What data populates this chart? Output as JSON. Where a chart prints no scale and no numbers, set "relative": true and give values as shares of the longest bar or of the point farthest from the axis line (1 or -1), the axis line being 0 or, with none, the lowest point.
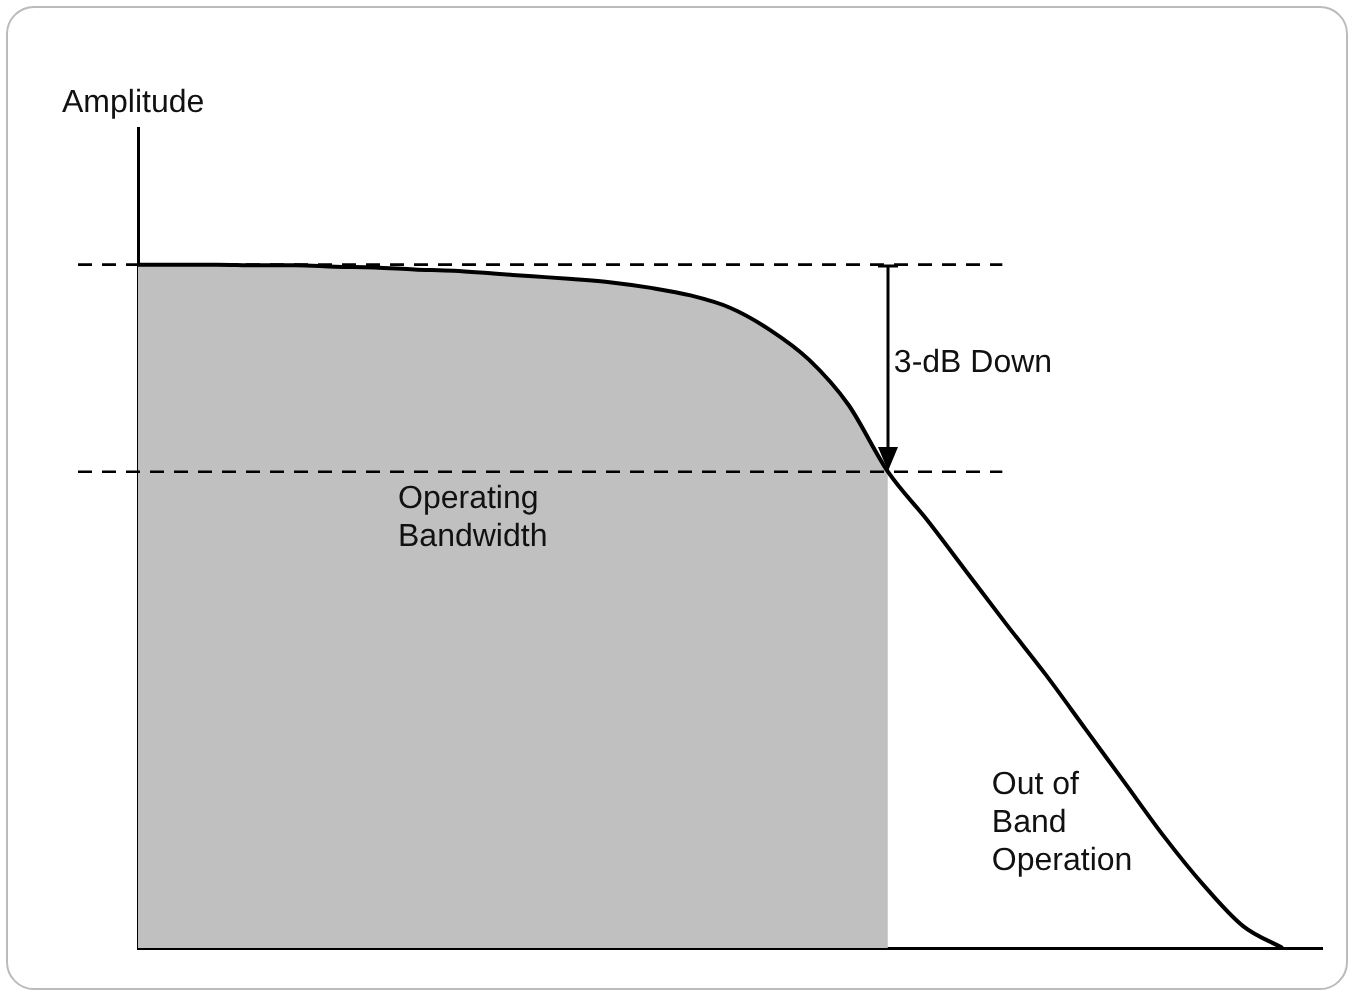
{
  "chart_data": {
    "type": "line",
    "ylabel": "Amplitude",
    "relative": true,
    "legend": false,
    "grid": false,
    "tick_labels": false,
    "marker": "none",
    "line_style": "solid",
    "categories": [
      null,
      null,
      null,
      null,
      null,
      null,
      null,
      null,
      null,
      null,
      null,
      null,
      null,
      null,
      null,
      null,
      null,
      null,
      null,
      null,
      null,
      null,
      null,
      null,
      null,
      null,
      null,
      null,
      null,
      null,
      null
    ],
    "series": [
      {
        "type": "area",
        "color": "#c0c0c0",
        "values": [
          1.0,
          1.0,
          1.0,
          0.999,
          0.999,
          0.997,
          0.996,
          0.993,
          0.991,
          0.987,
          0.983,
          0.979,
          0.974,
          0.966,
          0.955,
          0.937,
          0.905,
          0.861,
          0.795,
          0.697,
          null,
          null,
          null,
          null,
          null,
          null,
          null,
          null,
          null,
          null,
          null
        ]
      },
      {
        "color": "#000000",
        "values": [
          1.0,
          1.0,
          1.0,
          0.999,
          0.999,
          0.997,
          0.996,
          0.993,
          0.991,
          0.987,
          0.983,
          0.979,
          0.974,
          0.966,
          0.955,
          0.937,
          0.905,
          0.861,
          0.795,
          0.697,
          0.626,
          0.55,
          0.474,
          0.4,
          0.321,
          0.242,
          0.163,
          0.092,
          0.032,
          0,
          null
        ]
      }
    ],
    "ref_lines": [
      {
        "axis": "y",
        "value": 1.0,
        "color": "#000000",
        "line_style": "dashed"
      },
      {
        "axis": "y",
        "value": 0.697,
        "color": "#000000",
        "line_style": "dashed"
      }
    ],
    "annotations": [
      "3-dB Down",
      "Operating Bandwidth",
      "Out of Band Operation"
    ]
  }
}
